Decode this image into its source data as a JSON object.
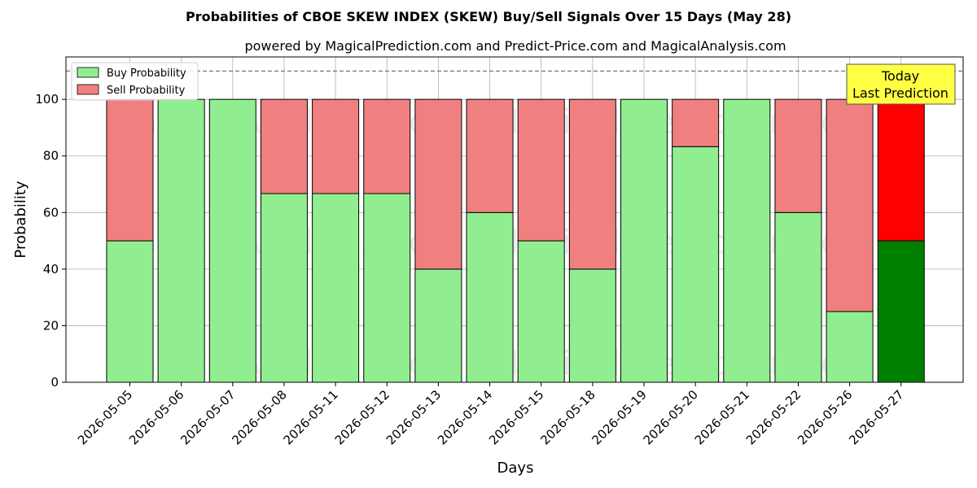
{
  "chart_data": {
    "type": "bar",
    "stacked": true,
    "title": "Probabilities of CBOE SKEW INDEX (SKEW) Buy/Sell Signals Over 15 Days (May 28)",
    "subtitle": "powered by MagicalPrediction.com and Predict-Price.com and MagicalAnalysis.com",
    "xlabel": "Days",
    "ylabel": "Probability",
    "ylim": [
      0,
      115
    ],
    "yticks": [
      0,
      20,
      40,
      60,
      80,
      100
    ],
    "grid": true,
    "legend_position": "top-left",
    "categories": [
      "2026-05-05",
      "2026-05-06",
      "2026-05-07",
      "2026-05-08",
      "2026-05-11",
      "2026-05-12",
      "2026-05-13",
      "2026-05-14",
      "2026-05-15",
      "2026-05-18",
      "2026-05-19",
      "2026-05-20",
      "2026-05-21",
      "2026-05-22",
      "2026-05-26",
      "2026-05-27"
    ],
    "series": [
      {
        "name": "Buy Probability",
        "color": "#90ee90",
        "highlight_color": "#008000",
        "values": [
          50,
          100,
          100,
          66.7,
          66.7,
          66.7,
          40,
          60,
          50,
          40,
          100,
          83.3,
          100,
          60,
          25,
          50
        ]
      },
      {
        "name": "Sell Probability",
        "color": "#f08080",
        "highlight_color": "#ff0000",
        "values": [
          50,
          0,
          0,
          33.3,
          33.3,
          33.3,
          60,
          40,
          50,
          60,
          0,
          16.7,
          0,
          40,
          75,
          50
        ]
      }
    ],
    "reference_line": {
      "y": 110,
      "style": "dashed"
    },
    "annotation": {
      "lines": [
        "Today",
        "Last Prediction"
      ],
      "color": "#ffff44",
      "target": "2026-05-27"
    },
    "watermarks": [
      "MagicalAnalysis.com",
      "MagicalPrediction.com"
    ]
  }
}
